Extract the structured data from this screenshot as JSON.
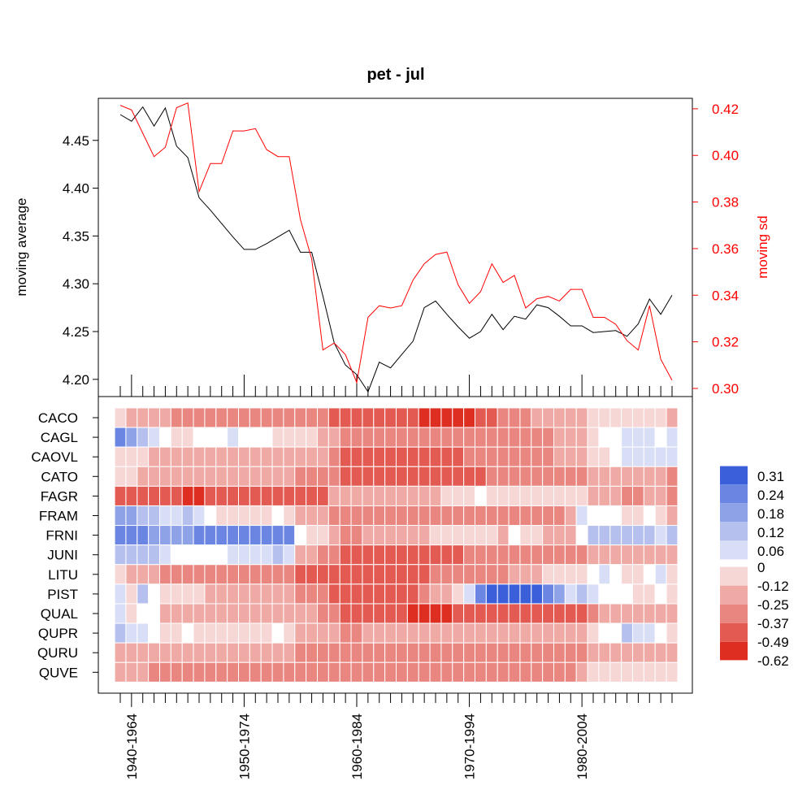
{
  "chart_data": [
    {
      "type": "line",
      "title": "pet - jul",
      "ylabel": "moving average",
      "ylabel_right": "moving sd",
      "ylim": [
        4.182,
        4.494
      ],
      "ylim_right": [
        0.2965,
        0.4245
      ],
      "yticks": [
        4.2,
        4.25,
        4.3,
        4.35,
        4.4,
        4.45
      ],
      "yticks_right": [
        0.3,
        0.32,
        0.34,
        0.36,
        0.38,
        0.4,
        0.42
      ],
      "grid": false,
      "colors": {
        "moving average": "#000000",
        "moving sd": "#ff0000"
      },
      "series": [
        {
          "axis": "left",
          "values": [
            4.477,
            4.47,
            4.485,
            4.465,
            4.484,
            4.444,
            4.432,
            4.39,
            4.377,
            4.363,
            4.349,
            4.336,
            4.336,
            4.342,
            4.349,
            4.356,
            4.333,
            4.333,
            4.287,
            4.238,
            4.215,
            4.205,
            4.187,
            4.218,
            4.212,
            4.226,
            4.24,
            4.275,
            4.282,
            4.268,
            4.255,
            4.243,
            4.25,
            4.268,
            4.252,
            4.266,
            4.263,
            4.278,
            4.275,
            4.266,
            4.256,
            4.256,
            4.249,
            4.25,
            4.251,
            4.245,
            4.258,
            4.284,
            4.268,
            4.288
          ]
        },
        {
          "axis": "right",
          "values": [
            0.4215,
            0.4195,
            0.4095,
            0.3995,
            0.4035,
            0.4205,
            0.4225,
            0.3845,
            0.3965,
            0.3965,
            0.4105,
            0.4105,
            0.4115,
            0.4025,
            0.3995,
            0.3995,
            0.3725,
            0.3555,
            0.3165,
            0.3195,
            0.3145,
            0.3025,
            0.3305,
            0.3355,
            0.3345,
            0.3355,
            0.3465,
            0.3535,
            0.3575,
            0.3585,
            0.3445,
            0.3365,
            0.3415,
            0.3535,
            0.3455,
            0.3485,
            0.3345,
            0.3385,
            0.3395,
            0.3375,
            0.3425,
            0.3425,
            0.3305,
            0.3305,
            0.3275,
            0.3205,
            0.3165,
            0.3355,
            0.3125,
            0.3035
          ]
        }
      ]
    },
    {
      "type": "heatmap",
      "rows": [
        "CACO",
        "CAGL",
        "CAOVL",
        "CATO",
        "FAGR",
        "FRAM",
        "FRNI",
        "JUNI",
        "LITU",
        "PIST",
        "QUAL",
        "QUPR",
        "QURU",
        "QUVE"
      ],
      "columns_count": 50,
      "column_tick_labels": [
        "1940-1964",
        "1950-1974",
        "1960-1984",
        "1970-1994",
        "1980-2004"
      ],
      "column_tick_indices": [
        1,
        11,
        21,
        31,
        41
      ],
      "legend": {
        "values": [
          "0.31",
          "0.24",
          "0.18",
          "0.12",
          "0.06",
          "0",
          "-0.12",
          "-0.25",
          "-0.37",
          "-0.49",
          "-0.62"
        ],
        "colors": [
          "#3b5fd8",
          "#6a86e2",
          "#8ea2e8",
          "#b5c0ee",
          "#d8def6",
          "#ffffff",
          "#f7d6d6",
          "#f0aaa5",
          "#e98680",
          "#e35a52",
          "#de2e22"
        ],
        "placement": "right"
      },
      "palette": {
        "neg": [
          "#f7d6d6",
          "#f0aaa5",
          "#e98680",
          "#e35a52",
          "#de2e22"
        ],
        "pos": [
          "#d8def6",
          "#b5c0ee",
          "#8ea2e8",
          "#6a86e2",
          "#3b5fd8"
        ]
      },
      "values": [
        [
          -1,
          -2,
          -2,
          -2,
          -2,
          -3,
          -3,
          -3,
          -3,
          -3,
          -3,
          -3,
          -3,
          -3,
          -3,
          -3,
          -3,
          -3,
          -3,
          -4,
          -4,
          -4,
          -4,
          -4,
          -4,
          -4,
          -4,
          -5,
          -5,
          -5,
          -5,
          -5,
          -4,
          -4,
          -3,
          -3,
          -3,
          -2,
          -2,
          -2,
          -2,
          -2,
          -1,
          -1,
          -1,
          -1,
          -1,
          -1,
          -1,
          -2
        ],
        [
          4,
          3,
          2,
          1,
          0,
          -1,
          -1,
          0,
          0,
          0,
          1,
          0,
          0,
          0,
          -1,
          -1,
          -1,
          -1,
          -2,
          -2,
          -3,
          -3,
          -3,
          -3,
          -3,
          -3,
          -3,
          -3,
          -3,
          -3,
          -3,
          -3,
          -3,
          -3,
          -3,
          -3,
          -3,
          -3,
          -3,
          -2,
          -2,
          -2,
          -1,
          0,
          0,
          1,
          1,
          1,
          0,
          1
        ],
        [
          -1,
          -1,
          -1,
          -2,
          -2,
          -2,
          -2,
          -2,
          -2,
          -2,
          -2,
          -2,
          -2,
          -2,
          -2,
          -2,
          -2,
          -2,
          -2,
          -3,
          -4,
          -4,
          -4,
          -4,
          -4,
          -4,
          -4,
          -4,
          -4,
          -4,
          -4,
          -3,
          -3,
          -3,
          -3,
          -3,
          -3,
          -3,
          -3,
          -2,
          -2,
          -2,
          -1,
          -1,
          0,
          1,
          1,
          1,
          1,
          1
        ],
        [
          -1,
          -1,
          -2,
          -2,
          -2,
          -2,
          -2,
          -2,
          -2,
          -2,
          -2,
          -2,
          -2,
          -2,
          -2,
          -2,
          -3,
          -3,
          -3,
          -3,
          -4,
          -4,
          -4,
          -4,
          -4,
          -4,
          -4,
          -4,
          -4,
          -4,
          -4,
          -4,
          -4,
          -3,
          -3,
          -3,
          -3,
          -3,
          -3,
          -3,
          -3,
          -3,
          -2,
          -2,
          -2,
          -2,
          -2,
          -2,
          -2,
          -3
        ],
        [
          -4,
          -4,
          -4,
          -4,
          -4,
          -4,
          -5,
          -5,
          -4,
          -4,
          -4,
          -4,
          -4,
          -4,
          -4,
          -4,
          -4,
          -4,
          -4,
          -2,
          -2,
          -2,
          -2,
          -2,
          -2,
          -2,
          -2,
          -2,
          -2,
          -1,
          -1,
          -1,
          0,
          -1,
          -1,
          -1,
          -1,
          -1,
          -1,
          -1,
          -1,
          -1,
          -2,
          -2,
          -2,
          -3,
          -3,
          -2,
          -2,
          -3
        ],
        [
          3,
          3,
          2,
          2,
          1,
          1,
          2,
          1,
          0,
          -1,
          -1,
          -1,
          -1,
          -1,
          0,
          -1,
          -2,
          -2,
          -2,
          -3,
          -3,
          -3,
          -3,
          -3,
          -3,
          -3,
          -3,
          -3,
          -3,
          -3,
          -3,
          -3,
          -3,
          -3,
          -3,
          -3,
          -3,
          -3,
          -3,
          -3,
          -2,
          1,
          0,
          0,
          0,
          -1,
          -1,
          0,
          -1,
          -2
        ],
        [
          4,
          4,
          4,
          3,
          3,
          3,
          3,
          4,
          4,
          4,
          4,
          4,
          4,
          4,
          4,
          4,
          0,
          -1,
          -1,
          -2,
          -3,
          -3,
          -2,
          -2,
          -2,
          -2,
          -2,
          -2,
          -1,
          -1,
          -1,
          -1,
          -1,
          -1,
          -2,
          0,
          -1,
          -1,
          -2,
          -2,
          -2,
          0,
          2,
          2,
          2,
          2,
          2,
          2,
          1,
          2
        ],
        [
          2,
          2,
          2,
          2,
          1,
          0,
          0,
          0,
          0,
          0,
          1,
          1,
          1,
          1,
          2,
          1,
          -2,
          -2,
          -3,
          -3,
          -4,
          -4,
          -4,
          -4,
          -4,
          -4,
          -4,
          -4,
          -4,
          -4,
          -4,
          -3,
          -3,
          -3,
          -3,
          -3,
          -3,
          -3,
          -3,
          -3,
          -3,
          -3,
          -2,
          -2,
          -2,
          -2,
          -2,
          -2,
          -2,
          -2
        ],
        [
          -1,
          -2,
          -2,
          -2,
          -3,
          -3,
          -3,
          -3,
          -3,
          -3,
          -3,
          -3,
          -3,
          -3,
          -3,
          -3,
          -4,
          -4,
          -4,
          -4,
          -4,
          -4,
          -4,
          -4,
          -4,
          -4,
          -4,
          -4,
          -3,
          -3,
          -3,
          -3,
          -3,
          -3,
          -3,
          -2,
          -2,
          -2,
          -1,
          -1,
          -1,
          -1,
          0,
          1,
          0,
          -1,
          -1,
          0,
          1,
          -1
        ],
        [
          1,
          -1,
          2,
          0,
          -1,
          -1,
          -1,
          -1,
          -2,
          -2,
          -2,
          -2,
          -2,
          -2,
          -2,
          -2,
          -3,
          -3,
          -3,
          -4,
          -4,
          -4,
          -4,
          -4,
          -4,
          -4,
          -4,
          -3,
          -2,
          -2,
          -1,
          1,
          4,
          5,
          5,
          5,
          5,
          5,
          4,
          3,
          1,
          2,
          1,
          0,
          0,
          0,
          -1,
          -1,
          0,
          -1
        ],
        [
          1,
          -1,
          0,
          0,
          -2,
          -2,
          -2,
          -2,
          -2,
          -2,
          -2,
          -2,
          -2,
          -2,
          -2,
          -2,
          -2,
          -2,
          -3,
          -3,
          -4,
          -4,
          -4,
          -4,
          -4,
          -4,
          -5,
          -5,
          -5,
          -5,
          -4,
          -4,
          -4,
          -4,
          -4,
          -4,
          -4,
          -4,
          -4,
          -4,
          -4,
          -4,
          -3,
          -2,
          -2,
          -2,
          -2,
          -2,
          -2,
          -2
        ],
        [
          2,
          1,
          1,
          0,
          -1,
          -1,
          0,
          -1,
          -1,
          -1,
          -1,
          -1,
          -1,
          -1,
          0,
          -1,
          -2,
          -2,
          -2,
          -2,
          -3,
          -3,
          -2,
          -2,
          -2,
          -2,
          -2,
          -2,
          -2,
          -2,
          -2,
          -2,
          -2,
          -2,
          -2,
          -2,
          -2,
          -2,
          -2,
          -2,
          -2,
          -2,
          -1,
          0,
          0,
          2,
          1,
          1,
          0,
          -1
        ],
        [
          -2,
          -2,
          -2,
          -2,
          -2,
          -2,
          -2,
          -2,
          -2,
          -2,
          -2,
          -2,
          -2,
          -2,
          -2,
          -2,
          -3,
          -3,
          -3,
          -3,
          -3,
          -3,
          -3,
          -3,
          -3,
          -3,
          -3,
          -3,
          -3,
          -3,
          -3,
          -3,
          -3,
          -3,
          -3,
          -3,
          -3,
          -3,
          -3,
          -3,
          -3,
          -3,
          -2,
          -2,
          -2,
          -2,
          -2,
          -2,
          -2,
          -2
        ],
        [
          -2,
          -2,
          -2,
          -3,
          -3,
          -3,
          -3,
          -3,
          -3,
          -3,
          -3,
          -3,
          -3,
          -3,
          -3,
          -3,
          -3,
          -3,
          -3,
          -3,
          -3,
          -3,
          -3,
          -3,
          -3,
          -3,
          -3,
          -3,
          -3,
          -3,
          -3,
          -3,
          -3,
          -3,
          -3,
          -3,
          -3,
          -3,
          -3,
          -3,
          -3,
          -2,
          -1,
          -1,
          -1,
          -1,
          -1,
          -1,
          -1,
          -1
        ]
      ]
    }
  ]
}
